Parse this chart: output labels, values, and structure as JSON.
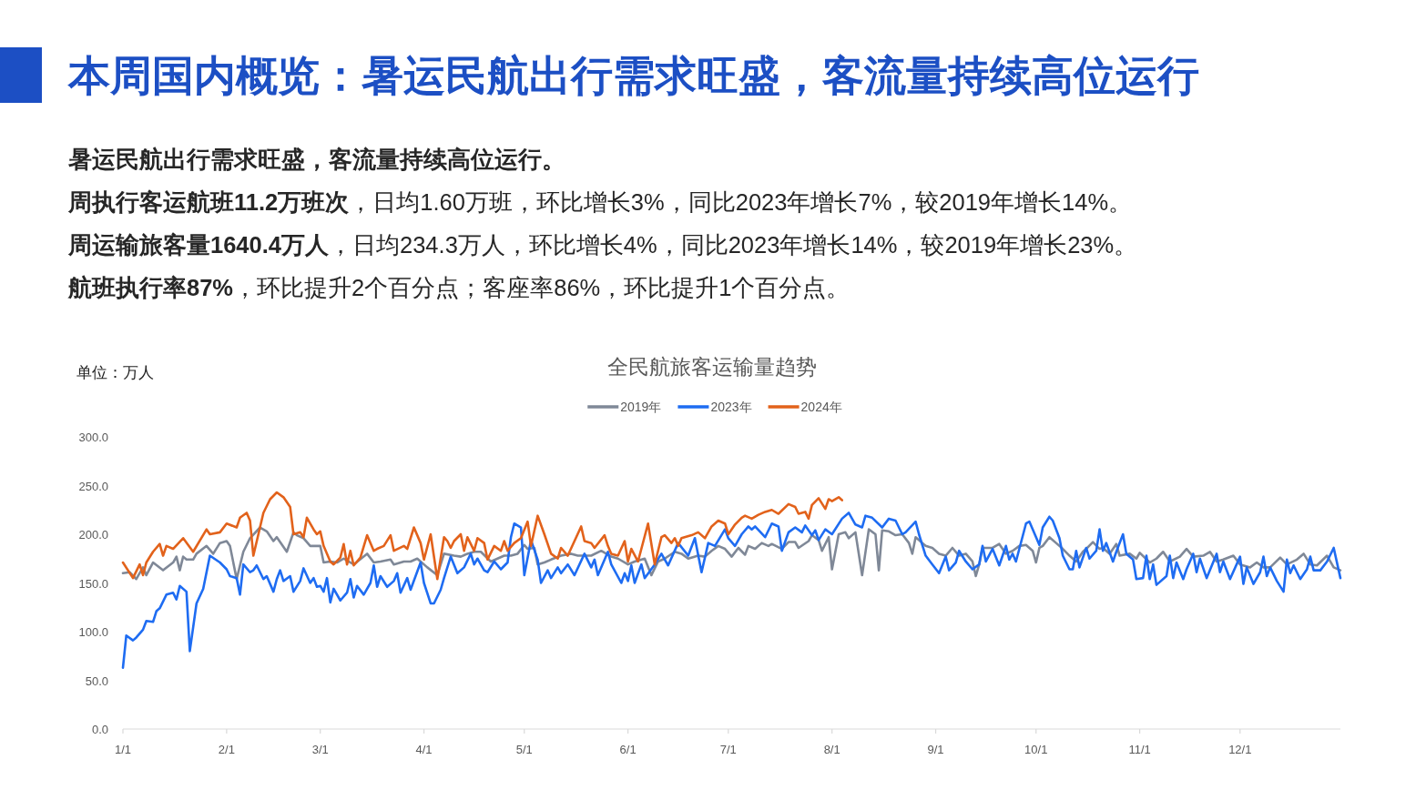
{
  "chart_data": {
    "type": "line",
    "title": "全民航旅客运输量趋势",
    "ylabel": "单位：万人",
    "annotations": [
      "本周国内概览：暑运民航出行需求旺盛，客流量持续高位运行",
      "暑运民航出行需求旺盛，客流量持续高位运行。",
      "**周执行客运航班11.2万班次**，日均1.60万班，环比增长3%，同比2023年增长7%，较2019年增长14%。",
      "**周运输旅客量1640.4万人**，日均234.3万人，环比增长4%，同比2023年增长14%，较2019年增长23%。",
      "**航班执行率87%**，环比提升2个百分点；客座率86%，环比提升1个百分点。"
    ],
    "legend": "top",
    "xlim": [
      "--01-01",
      "--12-31"
    ],
    "xticks": [
      {
        "value": "--01-01",
        "label": "1/1"
      },
      {
        "value": "--02-01",
        "label": "2/1"
      },
      {
        "value": "--03-01",
        "label": "3/1"
      },
      {
        "value": "--04-01",
        "label": "4/1"
      },
      {
        "value": "--05-01",
        "label": "5/1"
      },
      {
        "value": "--06-01",
        "label": "6/1"
      },
      {
        "value": "--07-01",
        "label": "7/1"
      },
      {
        "value": "--08-01",
        "label": "8/1"
      },
      {
        "value": "--09-01",
        "label": "9/1"
      },
      {
        "value": "--10-01",
        "label": "10/1"
      },
      {
        "value": "--11-01",
        "label": "11/1"
      },
      {
        "value": "--12-01",
        "label": "12/1"
      }
    ],
    "ylim": [
      0,
      300
    ],
    "yticks": [
      {
        "value": 0,
        "label": "0.0"
      },
      {
        "value": 50,
        "label": "50.0"
      },
      {
        "value": 100,
        "label": "100.0"
      },
      {
        "value": 150,
        "label": "150.0"
      },
      {
        "value": 200,
        "label": "200.0"
      },
      {
        "value": 250,
        "label": "250.0"
      },
      {
        "value": 300,
        "label": "300.0"
      }
    ],
    "series": [
      {
        "name": "2019年",
        "color": "#7f8897",
        "x": [
          "--01-01",
          "--01-03",
          "--01-05",
          "--01-07",
          "--01-08",
          "--01-10",
          "--01-13",
          "--01-16",
          "--01-17",
          "--01-18",
          "--01-19",
          "--01-20",
          "--01-22",
          "--01-23",
          "--01-26",
          "--01-28",
          "--01-30",
          "--02-01",
          "--02-02",
          "--02-04",
          "--02-06",
          "--02-08",
          "--02-11",
          "--02-13",
          "--02-15",
          "--02-16",
          "--02-19",
          "--02-21",
          "--02-22",
          "--02-24",
          "--02-26",
          "--02-28",
          "--03-01",
          "--03-02",
          "--03-04",
          "--03-06",
          "--03-08",
          "--03-11",
          "--03-15",
          "--03-17",
          "--03-19",
          "--03-22",
          "--03-23",
          "--03-26",
          "--03-28",
          "--03-30",
          "--04-02",
          "--04-05",
          "--04-07",
          "--04-10",
          "--04-12",
          "--04-14",
          "--04-16",
          "--04-18",
          "--04-21",
          "--04-23",
          "--04-25",
          "--04-27",
          "--04-29",
          "--05-01",
          "--05-02",
          "--05-04",
          "--05-05",
          "--05-07",
          "--05-09",
          "--05-12",
          "--05-15",
          "--05-17",
          "--05-21",
          "--05-24",
          "--05-27",
          "--05-29",
          "--06-01",
          "--06-03",
          "--06-06",
          "--06-08",
          "--06-10",
          "--06-12",
          "--06-15",
          "--06-17",
          "--06-19",
          "--06-22",
          "--06-24",
          "--06-26",
          "--06-28",
          "--06-30",
          "--07-02",
          "--07-04",
          "--07-06",
          "--07-07",
          "--07-09",
          "--07-11",
          "--07-13",
          "--07-14",
          "--07-17",
          "--07-19",
          "--07-21",
          "--07-22",
          "--07-25",
          "--07-26",
          "--07-28",
          "--07-29",
          "--07-31",
          "--08-01",
          "--08-03",
          "--08-05",
          "--08-06",
          "--08-08",
          "--08-10",
          "--08-12",
          "--08-14",
          "--08-15",
          "--08-16",
          "--08-18",
          "--08-20",
          "--08-22",
          "--08-24",
          "--08-25",
          "--08-26",
          "--08-28",
          "--08-29",
          "--08-31",
          "--09-02",
          "--09-04",
          "--09-06",
          "--09-08",
          "--09-10",
          "--09-12",
          "--09-13",
          "--09-14",
          "--09-15",
          "--09-18",
          "--09-20",
          "--09-22",
          "--09-24",
          "--09-26",
          "--09-28",
          "--09-30",
          "--10-01",
          "--10-02",
          "--10-03",
          "--10-05",
          "--10-07",
          "--10-09",
          "--10-11",
          "--10-13",
          "--10-15",
          "--10-16",
          "--10-18",
          "--10-20",
          "--10-21",
          "--10-23",
          "--10-25",
          "--10-26",
          "--10-29",
          "--10-31",
          "--11-01",
          "--11-04",
          "--11-06",
          "--11-08",
          "--11-10",
          "--11-13",
          "--11-15",
          "--11-17",
          "--11-20",
          "--11-22",
          "--11-24",
          "--11-26",
          "--11-29",
          "--12-01",
          "--12-04",
          "--12-06",
          "--12-08",
          "--12-10",
          "--12-13",
          "--12-15",
          "--12-18",
          "--12-20",
          "--12-22",
          "--12-24",
          "--12-27",
          "--12-29",
          "--12-31"
        ],
        "values": [
          160,
          161,
          154,
          166,
          158,
          171,
          163,
          171,
          177,
          163,
          177,
          174,
          174,
          180,
          188,
          180,
          191,
          193,
          188,
          154,
          182,
          196,
          207,
          203,
          193,
          197,
          182,
          202,
          199,
          196,
          188,
          188,
          188,
          171,
          172,
          171,
          175,
          169,
          180,
          171,
          172,
          174,
          169,
          172,
          172,
          175,
          166,
          158,
          180,
          178,
          177,
          180,
          182,
          182,
          172,
          175,
          178,
          178,
          180,
          189,
          185,
          186,
          169,
          171,
          174,
          178,
          180,
          178,
          178,
          183,
          177,
          175,
          169,
          172,
          175,
          158,
          172,
          175,
          182,
          180,
          175,
          178,
          177,
          183,
          188,
          185,
          177,
          186,
          179,
          188,
          185,
          191,
          188,
          190,
          185,
          192,
          192,
          186,
          193,
          199,
          194,
          183,
          197,
          164,
          200,
          202,
          196,
          202,
          158,
          205,
          200,
          163,
          204,
          203,
          199,
          200,
          191,
          180,
          197,
          191,
          188,
          186,
          180,
          178,
          186,
          178,
          180,
          172,
          157,
          169,
          186,
          186,
          190,
          180,
          183,
          188,
          189,
          183,
          171,
          186,
          188,
          197,
          191,
          185,
          178,
          172,
          182,
          185,
          192,
          185,
          186,
          180,
          190,
          178,
          180,
          175,
          181,
          171,
          175,
          182,
          172,
          177,
          185,
          177,
          178,
          182,
          172,
          174,
          178,
          169,
          166,
          171,
          166,
          166,
          176,
          169,
          174,
          180,
          169,
          168,
          178,
          166,
          163
        ]
      },
      {
        "name": "2023年",
        "color": "#1e6cf2",
        "x": [
          "--01-01",
          "--01-02",
          "--01-04",
          "--01-05",
          "--01-07",
          "--01-08",
          "--01-10",
          "--01-11",
          "--01-12",
          "--01-14",
          "--01-16",
          "--01-17",
          "--01-18",
          "--01-20",
          "--01-21",
          "--01-23",
          "--01-25",
          "--01-27",
          "--01-30",
          "--02-01",
          "--02-02",
          "--02-04",
          "--02-05",
          "--02-06",
          "--02-08",
          "--02-09",
          "--02-10",
          "--02-12",
          "--02-13",
          "--02-15",
          "--02-16",
          "--02-17",
          "--02-18",
          "--02-20",
          "--02-21",
          "--02-23",
          "--02-24",
          "--02-26",
          "--02-27",
          "--02-28",
          "--03-01",
          "--03-02",
          "--03-03",
          "--03-04",
          "--03-05",
          "--03-07",
          "--03-09",
          "--03-10",
          "--03-11",
          "--03-12",
          "--03-14",
          "--03-16",
          "--03-17",
          "--03-18",
          "--03-19",
          "--03-21",
          "--03-23",
          "--03-24",
          "--03-25",
          "--03-27",
          "--03-28",
          "--03-31",
          "--04-01",
          "--04-03",
          "--04-04",
          "--04-06",
          "--04-07",
          "--04-09",
          "--04-11",
          "--04-13",
          "--04-15",
          "--04-16",
          "--04-17",
          "--04-19",
          "--04-20",
          "--04-22",
          "--04-24",
          "--04-26",
          "--04-27",
          "--04-28",
          "--04-30",
          "--05-01",
          "--05-03",
          "--05-05",
          "--05-06",
          "--05-08",
          "--05-09",
          "--05-11",
          "--05-12",
          "--05-14",
          "--05-16",
          "--05-19",
          "--05-21",
          "--05-22",
          "--05-23",
          "--05-26",
          "--05-27",
          "--05-30",
          "--05-31",
          "--06-01",
          "--06-02",
          "--06-03",
          "--06-05",
          "--06-06",
          "--06-09",
          "--06-11",
          "--06-13",
          "--06-16",
          "--06-19",
          "--06-21",
          "--06-23",
          "--06-25",
          "--06-27",
          "--06-30",
          "--07-01",
          "--07-03",
          "--07-05",
          "--07-07",
          "--07-08",
          "--07-09",
          "--07-12",
          "--07-14",
          "--07-16",
          "--07-17",
          "--07-19",
          "--07-21",
          "--07-23",
          "--07-24",
          "--07-26",
          "--07-27",
          "--07-28",
          "--07-30",
          "--08-01",
          "--08-04",
          "--08-06",
          "--08-08",
          "--08-10",
          "--08-11",
          "--08-13",
          "--08-16",
          "--08-18",
          "--08-20",
          "--08-22",
          "--08-23",
          "--08-26",
          "--08-27",
          "--08-29",
          "--08-31",
          "--09-02",
          "--09-04",
          "--09-05",
          "--09-07",
          "--09-08",
          "--09-10",
          "--09-12",
          "--09-14",
          "--09-15",
          "--09-16",
          "--09-18",
          "--09-20",
          "--09-21",
          "--09-22",
          "--09-23",
          "--09-24",
          "--09-25",
          "--09-28",
          "--09-29",
          "--10-02",
          "--10-03",
          "--10-05",
          "--10-06",
          "--10-08",
          "--10-09",
          "--10-11",
          "--10-12",
          "--10-13",
          "--10-14",
          "--10-16",
          "--10-17",
          "--10-19",
          "--10-20",
          "--10-21",
          "--10-22",
          "--10-24",
          "--10-25",
          "--10-27",
          "--10-28",
          "--10-30",
          "--10-31",
          "--11-02",
          "--11-03",
          "--11-04",
          "--11-05",
          "--11-06",
          "--11-09",
          "--11-10",
          "--11-11",
          "--11-12",
          "--11-14",
          "--11-15",
          "--11-17",
          "--11-18",
          "--11-19",
          "--11-21",
          "--11-24",
          "--11-25",
          "--11-26",
          "--11-28",
          "--12-01",
          "--12-02",
          "--12-03",
          "--12-05",
          "--12-07",
          "--12-08",
          "--12-09",
          "--12-10",
          "--12-12",
          "--12-14",
          "--12-15",
          "--12-16",
          "--12-17",
          "--12-19",
          "--12-21",
          "--12-22",
          "--12-23",
          "--12-25",
          "--12-27",
          "--12-29",
          "--12-31"
        ],
        "values": [
          63,
          96,
          91,
          94,
          102,
          111,
          110,
          121,
          124,
          138,
          140,
          133,
          147,
          141,
          80,
          129,
          144,
          178,
          171,
          164,
          157,
          155,
          138,
          169,
          161,
          163,
          168,
          154,
          157,
          141,
          154,
          163,
          152,
          157,
          141,
          152,
          165,
          150,
          155,
          146,
          147,
          141,
          155,
          130,
          144,
          132,
          140,
          154,
          135,
          147,
          138,
          150,
          168,
          146,
          157,
          146,
          152,
          160,
          140,
          155,
          143,
          171,
          150,
          129,
          129,
          143,
          155,
          177,
          160,
          166,
          180,
          169,
          175,
          163,
          161,
          172,
          164,
          171,
          197,
          211,
          207,
          158,
          194,
          174,
          150,
          163,
          155,
          166,
          160,
          169,
          158,
          180,
          166,
          174,
          158,
          182,
          169,
          150,
          160,
          152,
          168,
          150,
          169,
          155,
          169,
          180,
          168,
          191,
          178,
          196,
          161,
          191,
          188,
          205,
          196,
          188,
          200,
          208,
          205,
          208,
          197,
          211,
          208,
          183,
          202,
          207,
          202,
          209,
          199,
          204,
          194,
          205,
          200,
          216,
          222,
          210,
          207,
          219,
          217,
          207,
          216,
          214,
          200,
          202,
          213,
          200,
          178,
          169,
          160,
          177,
          163,
          171,
          183,
          172,
          164,
          169,
          188,
          172,
          185,
          168,
          178,
          188,
          174,
          180,
          172,
          211,
          213,
          189,
          207,
          218,
          214,
          196,
          178,
          164,
          164,
          183,
          166,
          186,
          175,
          183,
          205,
          183,
          191,
          172,
          182,
          200,
          180,
          174,
          154,
          155,
          178,
          154,
          169,
          148,
          157,
          178,
          155,
          171,
          154,
          164,
          180,
          161,
          175,
          155,
          180,
          161,
          172,
          154,
          177,
          149,
          166,
          149,
          161,
          177,
          157,
          166,
          152,
          141,
          174,
          160,
          168,
          154,
          164,
          177,
          163,
          163,
          172,
          186,
          155
        ]
      },
      {
        "name": "2024年",
        "color": "#e2621b",
        "x": [
          "--01-01",
          "--01-04",
          "--01-06",
          "--01-07",
          "--01-08",
          "--01-10",
          "--01-12",
          "--01-13",
          "--01-14",
          "--01-16",
          "--01-19",
          "--01-22",
          "--01-26",
          "--01-27",
          "--01-30",
          "--02-01",
          "--02-04",
          "--02-05",
          "--02-07",
          "--02-08",
          "--02-09",
          "--02-12",
          "--02-14",
          "--02-16",
          "--02-18",
          "--02-20",
          "--02-21",
          "--02-23",
          "--02-24",
          "--02-25",
          "--02-27",
          "--02-28",
          "--03-01",
          "--03-02",
          "--03-04",
          "--03-05",
          "--03-07",
          "--03-08",
          "--03-09",
          "--03-10",
          "--03-11",
          "--03-13",
          "--03-15",
          "--03-17",
          "--03-18",
          "--03-20",
          "--03-22",
          "--03-23",
          "--03-26",
          "--03-27",
          "--03-29",
          "--03-31",
          "--04-01",
          "--04-03",
          "--04-05",
          "--04-07",
          "--04-08",
          "--04-09",
          "--04-10",
          "--04-12",
          "--04-13",
          "--04-14",
          "--04-16",
          "--04-17",
          "--04-19",
          "--04-20",
          "--04-22",
          "--04-24",
          "--04-25",
          "--04-26",
          "--04-28",
          "--04-30",
          "--05-02",
          "--05-03",
          "--05-05",
          "--05-07",
          "--05-09",
          "--05-11",
          "--05-12",
          "--05-14",
          "--05-16",
          "--05-18",
          "--05-19",
          "--05-21",
          "--05-22",
          "--05-25",
          "--05-26",
          "--05-27",
          "--05-29",
          "--05-31",
          "--06-01",
          "--06-02",
          "--06-04",
          "--06-07",
          "--06-09",
          "--06-11",
          "--06-12",
          "--06-14",
          "--06-15",
          "--06-16",
          "--06-17",
          "--06-20",
          "--06-22",
          "--06-24",
          "--06-26",
          "--06-28",
          "--06-30",
          "--07-01",
          "--07-03",
          "--07-05",
          "--07-06",
          "--07-08",
          "--07-10",
          "--07-12",
          "--07-14",
          "--07-16",
          "--07-19",
          "--07-21",
          "--07-22",
          "--07-24",
          "--07-25",
          "--07-26",
          "--07-28",
          "--07-30",
          "--07-31",
          "--08-01",
          "--08-03",
          "--08-04"
        ],
        "values": [
          171,
          155,
          169,
          158,
          171,
          182,
          190,
          178,
          188,
          185,
          196,
          182,
          205,
          200,
          202,
          211,
          207,
          217,
          222,
          214,
          178,
          222,
          236,
          243,
          238,
          228,
          200,
          202,
          197,
          217,
          205,
          200,
          203,
          188,
          172,
          169,
          176,
          190,
          169,
          183,
          168,
          176,
          199,
          183,
          185,
          188,
          199,
          183,
          188,
          185,
          207,
          191,
          174,
          200,
          154,
          197,
          193,
          186,
          193,
          200,
          183,
          197,
          183,
          196,
          191,
          174,
          188,
          183,
          193,
          183,
          191,
          196,
          213,
          188,
          219,
          200,
          180,
          175,
          186,
          178,
          193,
          208,
          193,
          191,
          186,
          199,
          188,
          180,
          178,
          193,
          172,
          185,
          172,
          211,
          169,
          197,
          199,
          191,
          196,
          188,
          196,
          199,
          202,
          196,
          208,
          214,
          211,
          200,
          210,
          217,
          219,
          216,
          220,
          223,
          225,
          221,
          231,
          228,
          221,
          223,
          216,
          230,
          237,
          226,
          236,
          234,
          238,
          235
        ]
      }
    ]
  }
}
